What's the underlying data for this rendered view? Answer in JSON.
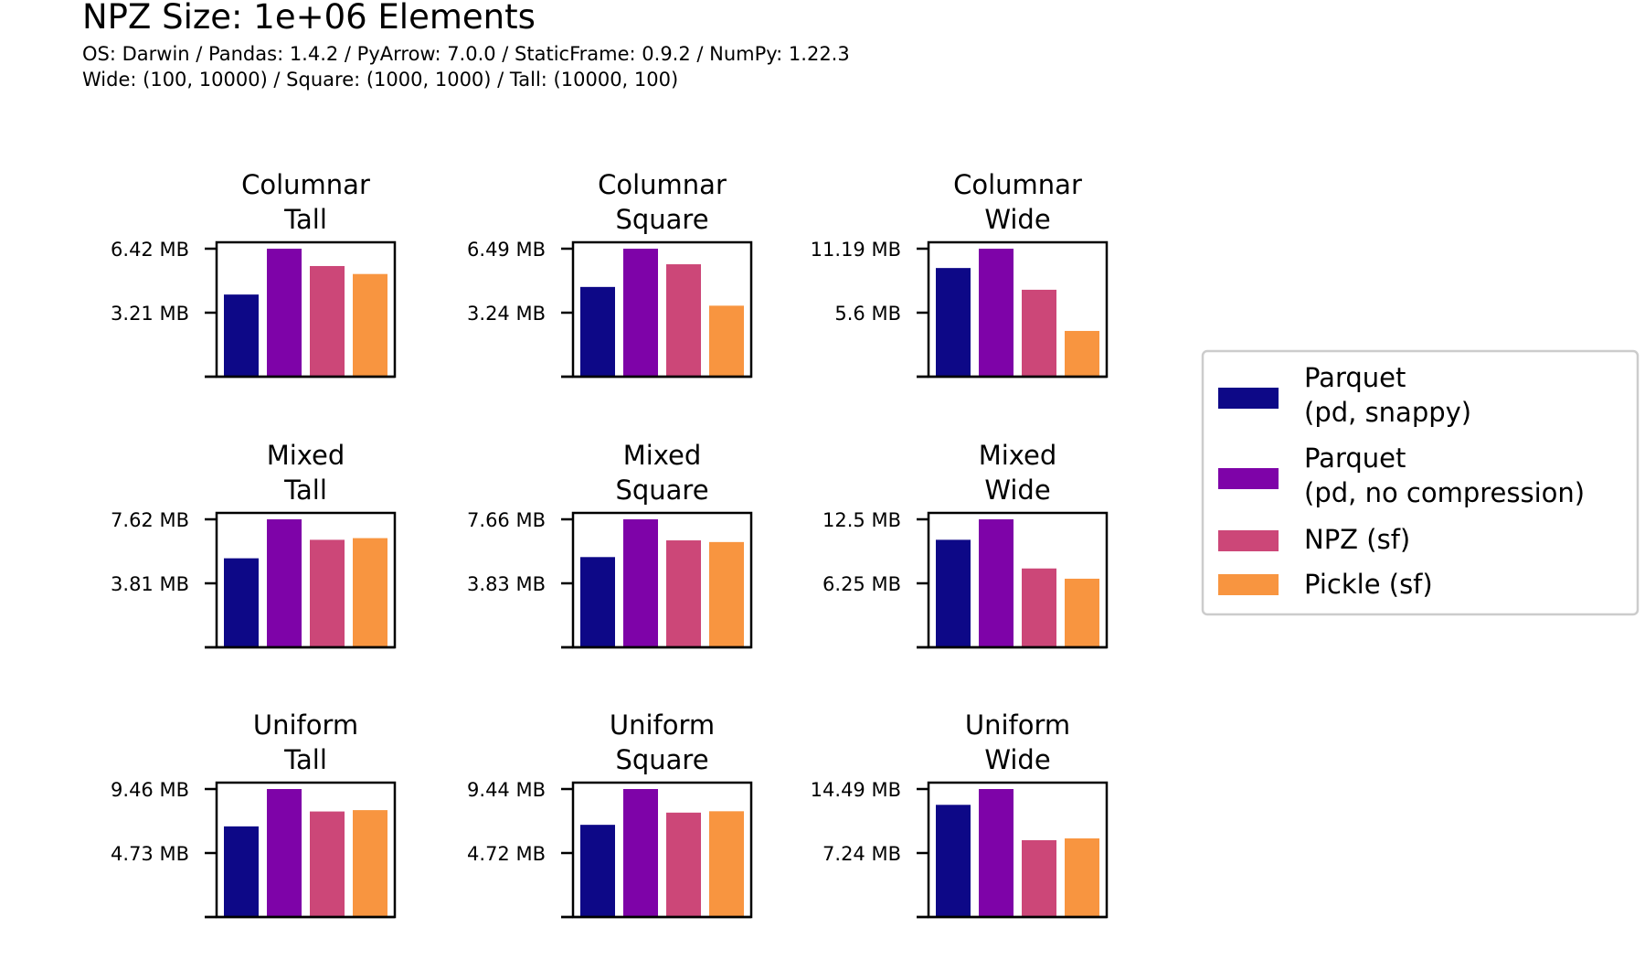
{
  "header": {
    "title": "NPZ Size: 1e+06 Elements",
    "subtitle_line1": "OS: Darwin / Pandas: 1.4.2 / PyArrow: 7.0.0 / StaticFrame: 0.9.2 / NumPy: 1.22.3",
    "subtitle_line2": "Wide: (100, 10000) / Square: (1000, 1000) / Tall: (10000, 100)"
  },
  "chart_data": {
    "type": "bar",
    "unit": "MB",
    "grid": false,
    "legend_position": "right",
    "series": [
      {
        "name_lines": [
          "Parquet",
          "(pd, snappy)"
        ],
        "color": "#0d0887"
      },
      {
        "name_lines": [
          "Parquet",
          "(pd, no compression)"
        ],
        "color": "#7e03a8"
      },
      {
        "name_lines": [
          "NPZ (sf)"
        ],
        "color": "#cc4778"
      },
      {
        "name_lines": [
          "Pickle (sf)"
        ],
        "color": "#f89540"
      }
    ],
    "panels": [
      {
        "title": [
          "Columnar",
          "Tall"
        ],
        "ticks": [
          "6.42 MB",
          "3.21 MB"
        ],
        "ymax": 6.42,
        "values": [
          4.12,
          6.42,
          5.55,
          5.15
        ]
      },
      {
        "title": [
          "Columnar",
          "Square"
        ],
        "ticks": [
          "6.49 MB",
          "3.24 MB"
        ],
        "ymax": 6.49,
        "values": [
          4.55,
          6.49,
          5.7,
          3.6
        ]
      },
      {
        "title": [
          "Columnar",
          "Wide"
        ],
        "ticks": [
          "11.19 MB",
          "5.6 MB"
        ],
        "ymax": 11.19,
        "values": [
          9.5,
          11.19,
          7.6,
          4.0
        ]
      },
      {
        "title": [
          "Mixed",
          "Tall"
        ],
        "ticks": [
          "7.62 MB",
          "3.81 MB"
        ],
        "ymax": 7.62,
        "values": [
          5.3,
          7.62,
          6.4,
          6.5
        ]
      },
      {
        "title": [
          "Mixed",
          "Square"
        ],
        "ticks": [
          "7.66 MB",
          "3.83 MB"
        ],
        "ymax": 7.66,
        "values": [
          5.4,
          7.66,
          6.4,
          6.3
        ]
      },
      {
        "title": [
          "Mixed",
          "Wide"
        ],
        "ticks": [
          "12.5 MB",
          "6.25 MB"
        ],
        "ymax": 12.5,
        "values": [
          10.5,
          12.5,
          7.7,
          6.7
        ]
      },
      {
        "title": [
          "Uniform",
          "Tall"
        ],
        "ticks": [
          "9.46 MB",
          "4.73 MB"
        ],
        "ymax": 9.46,
        "values": [
          6.7,
          9.46,
          7.8,
          7.9
        ]
      },
      {
        "title": [
          "Uniform",
          "Square"
        ],
        "ticks": [
          "9.44 MB",
          "4.72 MB"
        ],
        "ymax": 9.44,
        "values": [
          6.8,
          9.44,
          7.7,
          7.8
        ]
      },
      {
        "title": [
          "Uniform",
          "Wide"
        ],
        "ticks": [
          "14.49 MB",
          "7.24 MB"
        ],
        "ymax": 14.49,
        "values": [
          12.7,
          14.49,
          8.7,
          8.9
        ]
      }
    ]
  }
}
